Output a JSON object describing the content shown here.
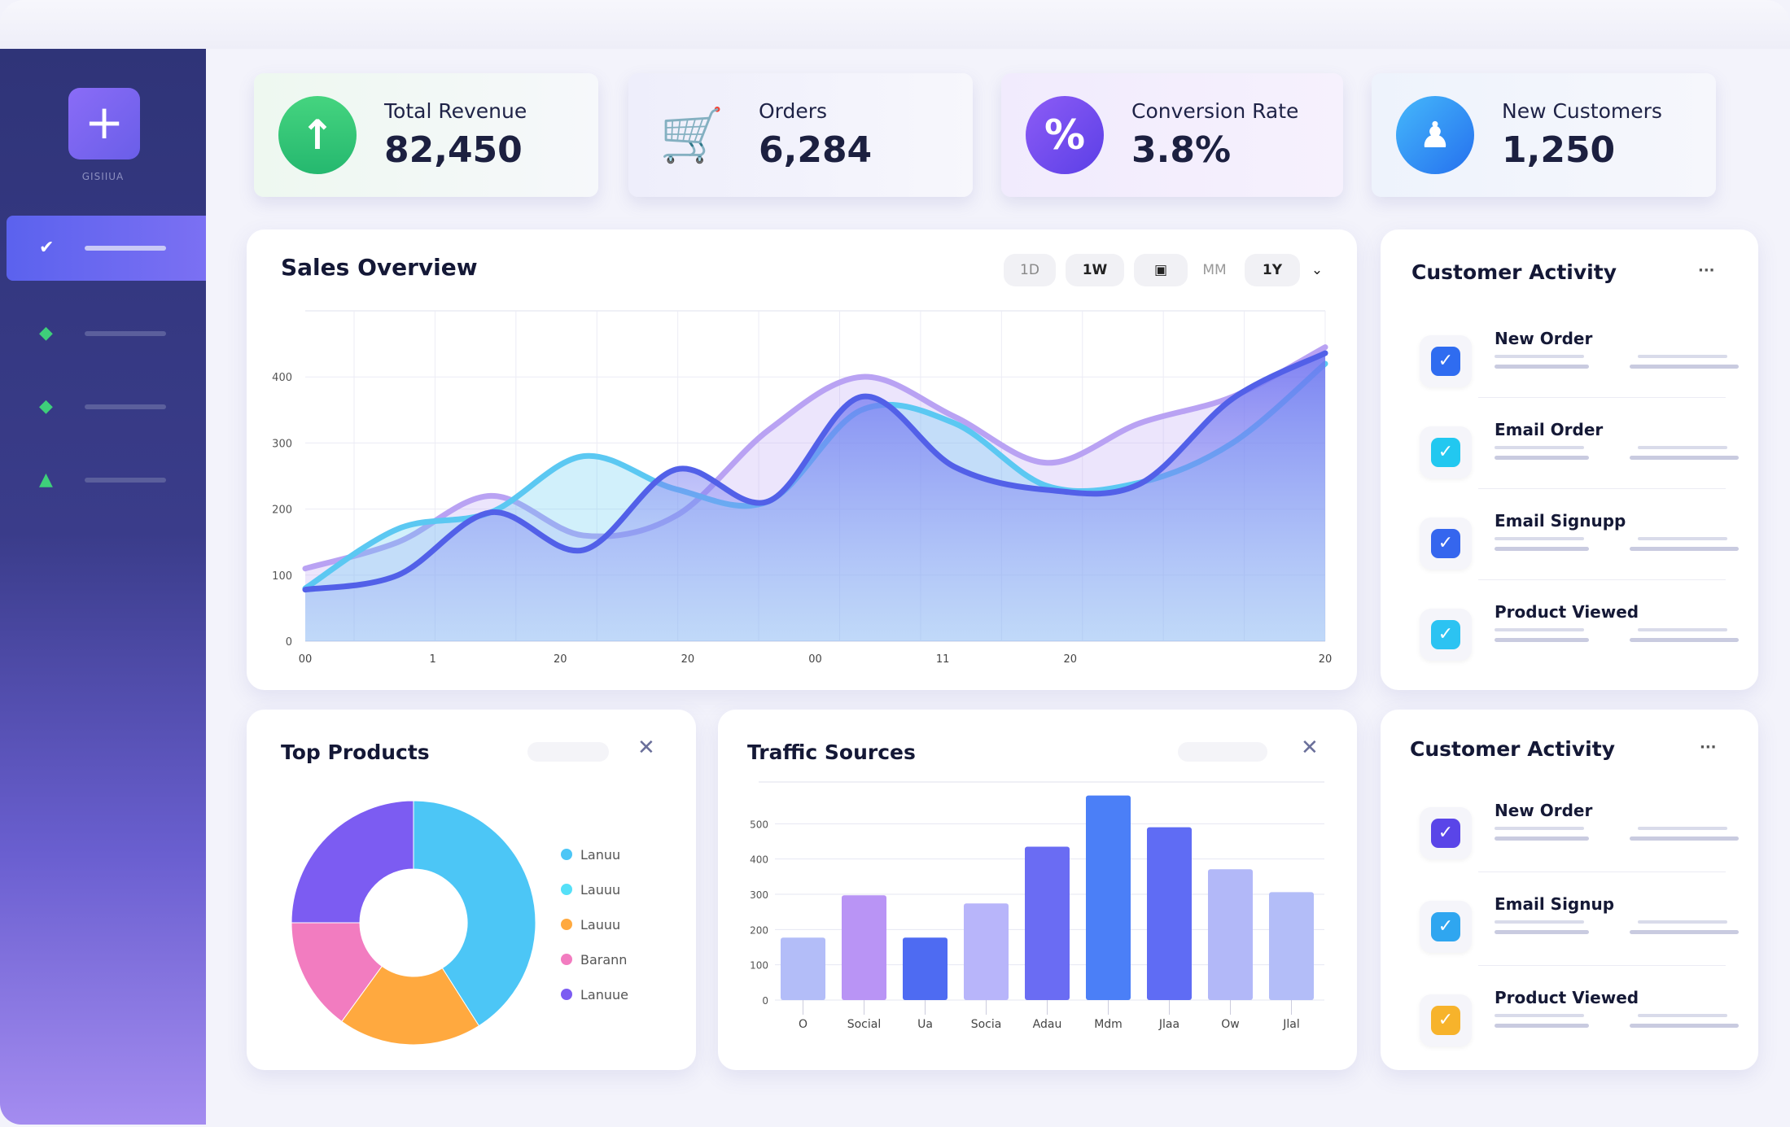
{
  "sidebar": {
    "logo_icon": "plus-icon",
    "logo_label": "GISIIUA",
    "items": [
      {
        "icon": "bird-icon",
        "active": true
      },
      {
        "icon": "tag-icon"
      },
      {
        "icon": "tag-icon"
      },
      {
        "icon": "tag-icon"
      }
    ]
  },
  "kpis": [
    {
      "label": "Total Revenue",
      "value": "82,450",
      "icon": "arrow-up-icon",
      "color": "#2fc474"
    },
    {
      "label": "Orders",
      "value": "6,284",
      "icon": "cart-icon",
      "color": "#5146e6"
    },
    {
      "label": "Conversion Rate",
      "value": "3.8%",
      "icon": "percent-icon",
      "color": "#6f4cf0"
    },
    {
      "label": "New Customers",
      "value": "1,250",
      "icon": "user-icon",
      "color": "#2a8cf5"
    }
  ],
  "sales": {
    "title": "Sales Overview",
    "ranges": [
      "1D",
      "1W",
      "",
      "MM",
      "1Y"
    ],
    "active_range": "1Y"
  },
  "chart_data": [
    {
      "type": "area",
      "title": "Sales Overview",
      "ylim": [
        0,
        500
      ],
      "yticks": [
        "0",
        "100",
        "200",
        "300",
        "400"
      ],
      "xticks": [
        "00",
        "1",
        "20",
        "20",
        "00",
        "11",
        "20",
        "",
        "20"
      ],
      "grid": true,
      "x": [
        0,
        1,
        2,
        3,
        4,
        5,
        6,
        7,
        8,
        9,
        10,
        11
      ],
      "series": [
        {
          "values": [
            110,
            150,
            220,
            160,
            190,
            320,
            400,
            340,
            270,
            330,
            370,
            445
          ],
          "color": "#b9a2f3"
        },
        {
          "values": [
            80,
            170,
            195,
            280,
            230,
            212,
            350,
            330,
            235,
            240,
            300,
            420
          ],
          "color": "#5bc8f2"
        },
        {
          "values": [
            78,
            100,
            195,
            138,
            260,
            212,
            370,
            264,
            229,
            238,
            367,
            436
          ],
          "color": "#5260e8"
        }
      ]
    },
    {
      "type": "bar",
      "title": "Traffic Sources",
      "ylim": [
        0,
        600
      ],
      "yticks": [
        "0",
        "100",
        "200",
        "300",
        "400",
        "500"
      ],
      "categories": [
        "O",
        "Social",
        "Ua",
        "Socia",
        "Adau",
        "Mdm",
        "Jlaa",
        "Ow",
        "Jlal"
      ],
      "values": [
        177,
        297,
        177,
        274,
        435,
        580,
        490,
        371,
        306
      ],
      "colors": [
        "#b3bdf8",
        "#b994f5",
        "#4e6bf2",
        "#b8b5fa",
        "#6a6cf3",
        "#4b7ff7",
        "#5f6cf4",
        "#b2b8f8",
        "#b3bdf8"
      ]
    },
    {
      "type": "pie",
      "title": "Top Products",
      "legend": "right",
      "labels": [
        "Lanuu",
        "Lauuu",
        "Lauuu",
        "Barann",
        "Lanuue"
      ],
      "values": [
        0.41,
        0,
        0.19,
        0.15,
        0.25
      ],
      "colors": [
        "#4cc6f6",
        "#55e0f8",
        "#ffa93f",
        "#f27cc0",
        "#7c5cf2"
      ]
    }
  ],
  "top_products": {
    "title": "Top Products"
  },
  "traffic": {
    "title": "Traffic Sources"
  },
  "activity1": {
    "title": "Customer Activity",
    "items": [
      {
        "title": "New Order",
        "color": "#2f6cf0",
        "icon": "bag-icon"
      },
      {
        "title": "Email Order",
        "color": "#22c8f0",
        "icon": "mail-icon"
      },
      {
        "title": "Email Signupp",
        "color": "#3566ee",
        "icon": "signup-icon"
      },
      {
        "title": "Product Viewed",
        "color": "#2cc3f2",
        "icon": "eye-icon"
      }
    ]
  },
  "activity2": {
    "title": "Customer Activity",
    "items": [
      {
        "title": "New Order",
        "color": "#5a45e8",
        "icon": "bag-icon"
      },
      {
        "title": "Email Signup",
        "color": "#2fa6f0",
        "icon": "mail-icon"
      },
      {
        "title": "Product Viewed",
        "color": "#f7b32b",
        "icon": "star-icon"
      }
    ]
  }
}
